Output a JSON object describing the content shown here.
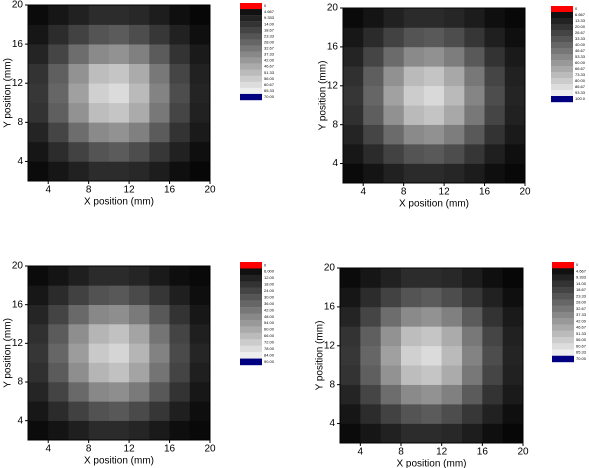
{
  "chart_data": [
    {
      "type": "heatmap",
      "xlabel": "X position (mm)",
      "ylabel": "Y position (mm)",
      "xlim": [
        2,
        20
      ],
      "ylim": [
        2,
        20
      ],
      "xticks": [
        4,
        8,
        12,
        16,
        20
      ],
      "yticks": [
        4,
        8,
        12,
        16,
        20
      ],
      "x_edges": [
        2,
        4,
        6,
        8,
        10,
        12,
        14,
        16,
        18,
        20
      ],
      "y_edges": [
        2,
        4,
        6,
        8,
        10,
        12,
        14,
        16,
        18,
        20
      ],
      "z": [
        [
          3,
          6,
          9,
          12,
          12,
          11,
          8,
          4,
          2
        ],
        [
          6,
          12,
          18,
          23,
          25,
          21,
          15,
          9,
          4
        ],
        [
          10,
          19,
          30,
          38,
          40,
          35,
          25,
          14,
          7
        ],
        [
          14,
          26,
          40,
          52,
          54,
          47,
          33,
          19,
          9
        ],
        [
          15,
          28,
          44,
          57,
          60,
          51,
          36,
          21,
          10
        ],
        [
          14,
          26,
          40,
          52,
          54,
          47,
          33,
          19,
          9
        ],
        [
          10,
          19,
          30,
          38,
          40,
          35,
          25,
          14,
          7
        ],
        [
          6,
          12,
          18,
          23,
          25,
          21,
          15,
          9,
          4
        ],
        [
          3,
          6,
          9,
          12,
          12,
          11,
          8,
          4,
          2
        ]
      ],
      "low_color": "#ff0000",
      "high_color": "#000080",
      "colorbar_ticks": [
        0,
        4.667,
        9.333,
        {
          "value": 14,
          "label": "14.00"
        },
        18.67,
        23.33,
        {
          "value": 28,
          "label": "28.00"
        },
        32.67,
        37.33,
        {
          "value": 42,
          "label": "42.00"
        },
        46.67,
        51.33,
        {
          "value": 56,
          "label": "56.00"
        },
        60.67,
        65.33,
        {
          "value": 70,
          "label": "70.00"
        }
      ]
    },
    {
      "type": "heatmap",
      "xlabel": "X position (mm)",
      "ylabel": "Y position (mm)",
      "xlim": [
        2,
        20
      ],
      "ylim": [
        2,
        20
      ],
      "xticks": [
        4,
        8,
        12,
        16,
        20
      ],
      "yticks": [
        4,
        8,
        12,
        16,
        20
      ],
      "x_edges": [
        2,
        4,
        6,
        8,
        10,
        12,
        14,
        16,
        18,
        20
      ],
      "y_edges": [
        2,
        4,
        6,
        8,
        10,
        12,
        14,
        16,
        18,
        20
      ],
      "z": [
        [
          4,
          8,
          13,
          17,
          17,
          15,
          11,
          6,
          3
        ],
        [
          9,
          17,
          26,
          33,
          35,
          30,
          21,
          12,
          6
        ],
        [
          14,
          27,
          42,
          54,
          57,
          49,
          35,
          20,
          10
        ],
        [
          19,
          37,
          57,
          73,
          77,
          66,
          47,
          27,
          13
        ],
        [
          21,
          40,
          63,
          80,
          85,
          73,
          52,
          30,
          14
        ],
        [
          19,
          37,
          57,
          73,
          77,
          66,
          47,
          27,
          13
        ],
        [
          14,
          27,
          42,
          54,
          57,
          49,
          35,
          20,
          10
        ],
        [
          9,
          17,
          26,
          33,
          35,
          30,
          21,
          12,
          6
        ],
        [
          4,
          8,
          13,
          17,
          17,
          15,
          11,
          6,
          3
        ]
      ],
      "low_color": "#ff0000",
      "high_color": "#000080",
      "colorbar_ticks": [
        0,
        6.667,
        13.33,
        {
          "value": 20,
          "label": "20.00"
        },
        26.67,
        33.33,
        {
          "value": 40,
          "label": "40.00"
        },
        46.67,
        53.33,
        {
          "value": 60,
          "label": "60.00"
        },
        66.67,
        73.33,
        {
          "value": 80,
          "label": "80.00"
        },
        86.67,
        93.33,
        {
          "value": 100,
          "label": "100.0"
        }
      ]
    },
    {
      "type": "heatmap",
      "xlabel": "X position (mm)",
      "ylabel": "Y position (mm)",
      "xlim": [
        2,
        20
      ],
      "ylim": [
        2,
        20
      ],
      "xticks": [
        4,
        8,
        12,
        16,
        20
      ],
      "yticks": [
        4,
        8,
        12,
        16,
        20
      ],
      "x_edges": [
        2,
        4,
        6,
        8,
        10,
        12,
        14,
        16,
        18,
        20
      ],
      "y_edges": [
        2,
        4,
        6,
        8,
        10,
        12,
        14,
        16,
        18,
        20
      ],
      "z": [
        [
          4,
          7,
          11,
          15,
          15,
          13,
          9,
          5,
          3
        ],
        [
          8,
          15,
          23,
          29,
          31,
          26,
          19,
          11,
          5
        ],
        [
          13,
          24,
          37,
          48,
          50,
          43,
          31,
          18,
          8
        ],
        [
          17,
          32,
          50,
          64,
          68,
          58,
          41,
          24,
          11
        ],
        [
          19,
          36,
          55,
          71,
          75,
          64,
          46,
          26,
          13
        ],
        [
          17,
          32,
          50,
          64,
          68,
          58,
          41,
          24,
          11
        ],
        [
          13,
          24,
          37,
          48,
          50,
          43,
          31,
          18,
          8
        ],
        [
          8,
          15,
          23,
          29,
          31,
          26,
          19,
          11,
          5
        ],
        [
          4,
          7,
          11,
          15,
          15,
          13,
          9,
          5,
          3
        ]
      ],
      "low_color": "#ff0000",
      "high_color": "#000080",
      "colorbar_ticks": [
        0,
        {
          "value": 6,
          "label": "6.000"
        },
        {
          "value": 12,
          "label": "12.00"
        },
        {
          "value": 18,
          "label": "18.00"
        },
        {
          "value": 24,
          "label": "24.00"
        },
        {
          "value": 30,
          "label": "30.00"
        },
        {
          "value": 36,
          "label": "36.00"
        },
        {
          "value": 42,
          "label": "42.00"
        },
        {
          "value": 48,
          "label": "48.00"
        },
        {
          "value": 54,
          "label": "54.00"
        },
        {
          "value": 60,
          "label": "60.00"
        },
        {
          "value": 66,
          "label": "66.00"
        },
        {
          "value": 72,
          "label": "72.00"
        },
        {
          "value": 78,
          "label": "78.00"
        },
        {
          "value": 84,
          "label": "84.00"
        },
        {
          "value": 90,
          "label": "90.00"
        }
      ]
    },
    {
      "type": "heatmap",
      "xlabel": "X position (mm)",
      "ylabel": "Y position (mm)",
      "xlim": [
        2,
        20
      ],
      "ylim": [
        2,
        20
      ],
      "xticks": [
        4,
        8,
        12,
        16,
        20
      ],
      "yticks": [
        4,
        8,
        12,
        16,
        20
      ],
      "x_edges": [
        2,
        4,
        6,
        8,
        10,
        12,
        14,
        16,
        18,
        20
      ],
      "y_edges": [
        2,
        4,
        6,
        8,
        10,
        12,
        14,
        16,
        18,
        20
      ],
      "z": [
        [
          3,
          6,
          9,
          12,
          12,
          11,
          8,
          4,
          2
        ],
        [
          6,
          12,
          18,
          23,
          25,
          21,
          15,
          9,
          4
        ],
        [
          10,
          19,
          30,
          38,
          40,
          35,
          25,
          14,
          7
        ],
        [
          14,
          26,
          40,
          52,
          54,
          47,
          33,
          19,
          9
        ],
        [
          15,
          28,
          44,
          57,
          60,
          51,
          36,
          21,
          10
        ],
        [
          14,
          26,
          40,
          52,
          54,
          47,
          33,
          19,
          9
        ],
        [
          10,
          19,
          30,
          38,
          40,
          35,
          25,
          14,
          7
        ],
        [
          6,
          12,
          18,
          23,
          25,
          21,
          15,
          9,
          4
        ],
        [
          3,
          6,
          9,
          12,
          12,
          11,
          8,
          4,
          2
        ]
      ],
      "low_color": "#ff0000",
      "high_color": "#000080",
      "colorbar_ticks": [
        0,
        4.667,
        9.333,
        {
          "value": 14,
          "label": "14.00"
        },
        18.67,
        23.33,
        {
          "value": 28,
          "label": "28.00"
        },
        32.67,
        37.33,
        {
          "value": 42,
          "label": "42.00"
        },
        46.67,
        51.33,
        {
          "value": 56,
          "label": "56.00"
        },
        60.67,
        65.33,
        {
          "value": 70,
          "label": "70.00"
        }
      ]
    }
  ]
}
